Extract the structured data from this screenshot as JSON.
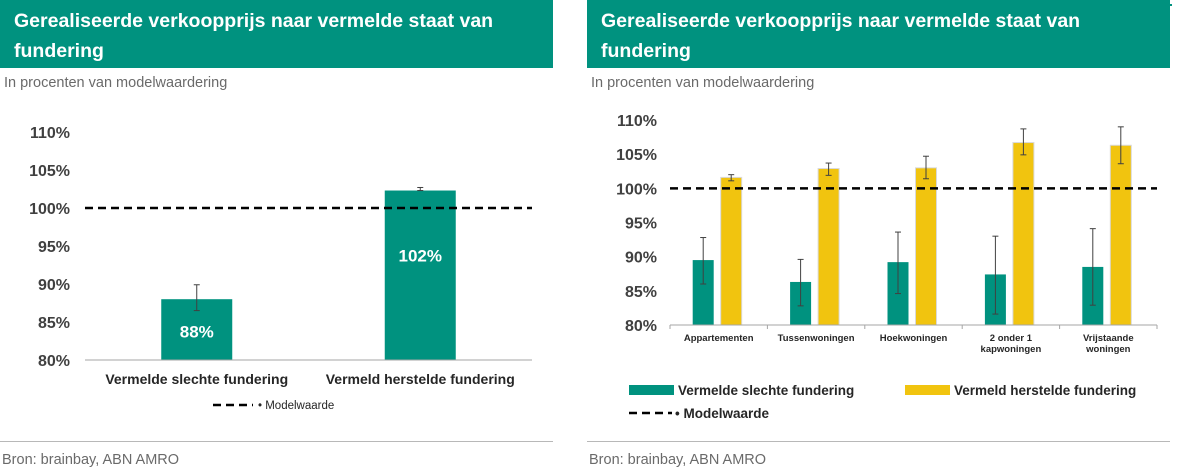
{
  "colors": {
    "teal": "#00927f",
    "yellow": "#f1c40f",
    "axis": "#a6a6a6"
  },
  "left": {
    "title": "Gerealiseerde verkoopprijs naar vermelde staat van fundering",
    "subtitle": "In procenten van modelwaardering",
    "source": "Bron: brainbay, ABN AMRO",
    "chart_data": {
      "type": "bar",
      "title": "Gerealiseerde verkoopprijs naar vermelde staat van fundering",
      "subtitle": "In procenten van modelwaardering",
      "categories": [
        "Vermelde slechte fundering",
        "Vermeld herstelde fundering"
      ],
      "values": [
        88,
        102.3
      ],
      "error_low": [
        86.5,
        102.3
      ],
      "error_high": [
        89.9,
        102.7
      ],
      "data_labels": [
        "88%",
        "102%"
      ],
      "reference_line": {
        "name": "Modelwaarde",
        "value": 100,
        "style": "dashed"
      },
      "ylim": [
        80,
        110
      ],
      "yticks": [
        80,
        85,
        90,
        95,
        100,
        105,
        110
      ],
      "ytick_labels": [
        "80%",
        "85%",
        "90%",
        "95%",
        "100%",
        "105%",
        "110%"
      ],
      "grid": false,
      "legend": "bottom",
      "legend_entries": [
        "Modelwaarde"
      ]
    }
  },
  "right": {
    "title": "Gerealiseerde verkoopprijs naar vermelde staat van fundering",
    "subtitle": "In procenten van modelwaardering",
    "source": "Bron: brainbay, ABN AMRO",
    "chart_data": {
      "type": "bar",
      "title": "Gerealiseerde verkoopprijs naar vermelde staat van fundering",
      "subtitle": "In procenten van modelwaardering",
      "categories": [
        [
          "Appartementen"
        ],
        [
          "Tussenwoningen"
        ],
        [
          "Hoekwoningen"
        ],
        [
          "2 onder 1",
          "kapwoningen"
        ],
        [
          "Vrijstaande",
          "woningen"
        ]
      ],
      "series": [
        {
          "name": "Vermelde slechte fundering",
          "color": "#00927f",
          "values": [
            89.5,
            86.3,
            89.2,
            87.4,
            88.5
          ],
          "error_low": [
            86.0,
            82.8,
            84.6,
            81.6,
            82.9
          ],
          "error_high": [
            92.8,
            89.6,
            93.6,
            93.0,
            94.1
          ]
        },
        {
          "name": "Vermeld herstelde fundering",
          "color": "#f1c40f",
          "values": [
            101.6,
            102.9,
            103.0,
            106.7,
            106.3
          ],
          "error_low": [
            101.1,
            101.9,
            101.4,
            104.9,
            103.6
          ],
          "error_high": [
            102.0,
            103.7,
            104.7,
            108.7,
            109.0
          ]
        }
      ],
      "reference_line": {
        "name": "Modelwaarde",
        "value": 100,
        "style": "dashed"
      },
      "ylim": [
        80,
        110
      ],
      "yticks": [
        80,
        85,
        90,
        95,
        100,
        105,
        110
      ],
      "ytick_labels": [
        "80%",
        "85%",
        "90%",
        "95%",
        "100%",
        "105%",
        "110%"
      ],
      "grid": false,
      "legend": "bottom",
      "legend_entries": [
        "Vermelde slechte fundering",
        "Vermeld herstelde fundering",
        "Modelwaarde"
      ]
    }
  }
}
